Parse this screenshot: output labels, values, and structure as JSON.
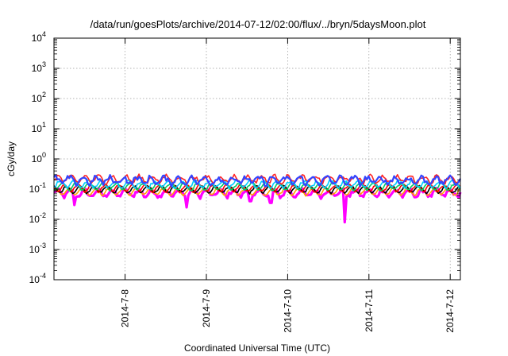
{
  "chart_data": {
    "type": "line",
    "title": "/data/run/goesPlots/archive/2014-07-12/02:00/flux/../bryn/5daysMoon.plot",
    "xlabel": "Coordinated Universal Time (UTC)",
    "ylabel": "cGy/day",
    "y_scale": "log",
    "ylim": [
      0.0001,
      10000
    ],
    "xlim": [
      "2014-07-07 03:00",
      "2014-07-12 03:00"
    ],
    "y_ticks": [
      {
        "value": 0.0001,
        "base": "10",
        "exp": "-4"
      },
      {
        "value": 0.001,
        "base": "10",
        "exp": "-3"
      },
      {
        "value": 0.01,
        "base": "10",
        "exp": "-2"
      },
      {
        "value": 0.1,
        "base": "10",
        "exp": "-1"
      },
      {
        "value": 1,
        "base": "10",
        "exp": "0"
      },
      {
        "value": 10,
        "base": "10",
        "exp": "1"
      },
      {
        "value": 100,
        "base": "10",
        "exp": "2"
      },
      {
        "value": 1000,
        "base": "10",
        "exp": "3"
      },
      {
        "value": 10000,
        "base": "10",
        "exp": "4"
      }
    ],
    "x_ticks": [
      {
        "date": "2014-07-08",
        "label": "2014-7-8"
      },
      {
        "date": "2014-07-09",
        "label": "2014-7-9"
      },
      {
        "date": "2014-07-10",
        "label": "2014-7-10"
      },
      {
        "date": "2014-07-11",
        "label": "2014-7-11"
      },
      {
        "date": "2014-07-12",
        "label": "2014-7-12"
      }
    ],
    "grid": true,
    "legend": "none",
    "series": [
      {
        "color": "#ff00ff",
        "fill": true,
        "base_level": 0.075,
        "noise": 0.16,
        "dips": [
          {
            "date": "2014-07-07 09:00",
            "value": 0.03
          },
          {
            "date": "2014-07-08 18:00",
            "value": 0.025
          },
          {
            "date": "2014-07-09 13:00",
            "value": 0.04
          },
          {
            "date": "2014-07-09 19:00",
            "value": 0.035
          },
          {
            "date": "2014-07-10 17:00",
            "value": 0.008
          }
        ]
      },
      {
        "color": "#ffa500",
        "fill": false,
        "base_level": 0.085,
        "noise": 0.08,
        "dips": []
      },
      {
        "color": "#000000",
        "fill": false,
        "base_level": 0.1,
        "noise": 0.08,
        "dips": []
      },
      {
        "color": "#ff0000",
        "fill": false,
        "base_level": 0.11,
        "noise": 0.08,
        "dips": []
      },
      {
        "color": "#00cc66",
        "fill": false,
        "base_level": 0.125,
        "noise": 0.09,
        "dips": []
      },
      {
        "color": "#00ccff",
        "fill": false,
        "base_level": 0.15,
        "noise": 0.12,
        "dips": []
      },
      {
        "color": "#ff2222",
        "fill": false,
        "base_level": 0.22,
        "noise": 0.15,
        "dips": []
      },
      {
        "color": "#3344ff",
        "fill": false,
        "base_level": 0.2,
        "noise": 0.2,
        "dips": []
      }
    ]
  }
}
